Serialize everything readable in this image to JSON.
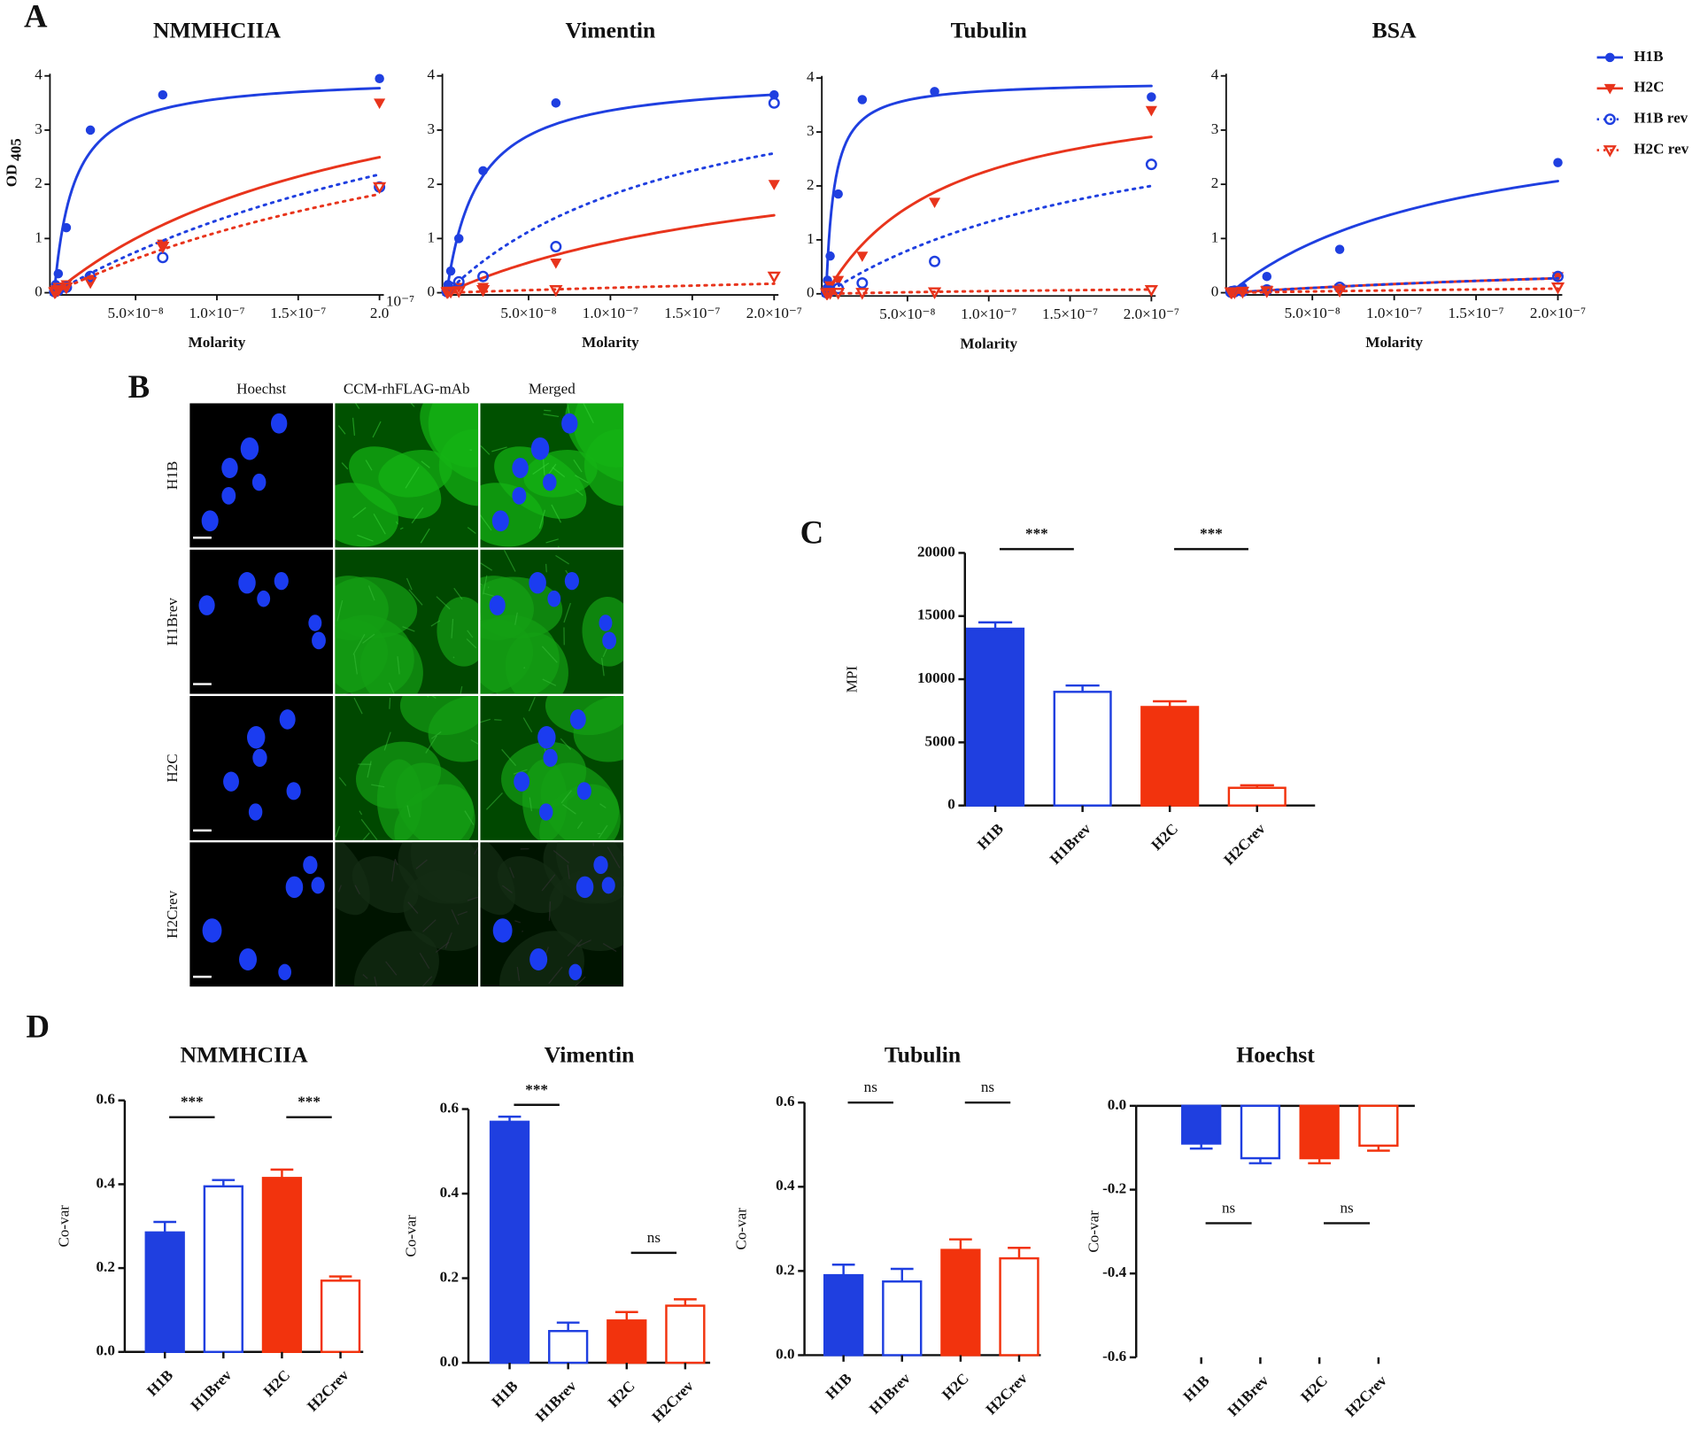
{
  "panel_labels": [
    "A",
    "B",
    "C",
    "D"
  ],
  "microscopy": {
    "columns": [
      "Hoechst",
      "CCM-rhFLAG-mAb",
      "Merged"
    ],
    "rows": [
      "H1B",
      "H1Brev",
      "H2C",
      "H2Crev"
    ]
  },
  "chart_data": [
    {
      "type": "line",
      "title": "NMMHCIIA",
      "xlabel": "Molarity",
      "ylabel": "OD",
      "ylabel_subscript": "405",
      "x": [
        2.74e-10,
        8.23e-10,
        2.47e-09,
        7.41e-09,
        2.22e-08,
        6.67e-08,
        2e-07
      ],
      "xlim": [
        0,
        2e-07
      ],
      "ylim": [
        0,
        4
      ],
      "yticks": [
        0,
        1,
        2,
        3,
        4
      ],
      "xticks": [
        {
          "value": 5e-08,
          "label": "5.0×10⁻⁸"
        },
        {
          "value": 1e-07,
          "label": "1.0×10⁻⁷"
        },
        {
          "value": 1.5e-07,
          "label": "1.5×10⁻⁷"
        },
        {
          "value": 2e-07,
          "label": "2.0"
        }
      ],
      "x_exponent_label": "10⁻⁷",
      "series": [
        {
          "name": "H1B",
          "color": "#1f3fe0",
          "marker": "circle",
          "filled": true,
          "dashed": false,
          "values": [
            0.05,
            0.15,
            0.35,
            1.2,
            3.0,
            3.65,
            3.95
          ],
          "fit": {
            "bmax": 4.0,
            "kd": 1.2e-08
          }
        },
        {
          "name": "H2C",
          "color": "#e8341c",
          "marker": "triangle",
          "filled": true,
          "dashed": false,
          "values": [
            0.02,
            0.05,
            0.1,
            0.15,
            0.25,
            0.9,
            3.5
          ],
          "fit": {
            "bmax": 5.0,
            "kd": 2e-07
          }
        },
        {
          "name": "H1B rev",
          "color": "#1f3fe0",
          "marker": "circle",
          "filled": false,
          "dashed": true,
          "values": [
            0.02,
            0.03,
            0.05,
            0.1,
            0.3,
            0.65,
            1.95
          ],
          "fit": {
            "bmax": 6.0,
            "kd": 3.5e-07
          }
        },
        {
          "name": "H2C rev",
          "color": "#e8341c",
          "marker": "triangle",
          "filled": false,
          "dashed": true,
          "values": [
            0.01,
            0.02,
            0.05,
            0.1,
            0.2,
            0.85,
            1.95
          ],
          "fit": {
            "bmax": 5.0,
            "kd": 3.5e-07
          }
        }
      ]
    },
    {
      "type": "line",
      "title": "Vimentin",
      "xlabel": "Molarity",
      "x": [
        2.74e-10,
        8.23e-10,
        2.47e-09,
        7.41e-09,
        2.22e-08,
        6.67e-08,
        2e-07
      ],
      "xlim": [
        0,
        2e-07
      ],
      "ylim": [
        0,
        4
      ],
      "yticks": [
        0,
        1,
        2,
        3,
        4
      ],
      "xticks": [
        {
          "value": 5e-08,
          "label": "5.0×10⁻⁸"
        },
        {
          "value": 1e-07,
          "label": "1.0×10⁻⁷"
        },
        {
          "value": 1.5e-07,
          "label": "1.5×10⁻⁷"
        },
        {
          "value": 2e-07,
          "label": "2.0×10⁻⁷"
        }
      ],
      "series": [
        {
          "color": "#1f3fe0",
          "marker": "circle",
          "filled": true,
          "dashed": false,
          "values": [
            0.05,
            0.15,
            0.4,
            1.0,
            2.25,
            3.5,
            3.65
          ],
          "fit": {
            "bmax": 4.0,
            "kd": 1.9e-08
          }
        },
        {
          "color": "#e8341c",
          "marker": "triangle",
          "filled": true,
          "dashed": false,
          "values": [
            0.01,
            0.02,
            0.05,
            0.1,
            0.1,
            0.55,
            2.0
          ],
          "fit": {
            "bmax": 3.0,
            "kd": 2.2e-07
          }
        },
        {
          "color": "#1f3fe0",
          "marker": "circle",
          "filled": false,
          "dashed": true,
          "values": [
            0.02,
            0.05,
            0.1,
            0.2,
            0.3,
            0.85,
            3.5
          ],
          "fit": {
            "bmax": 4.5,
            "kd": 1.5e-07
          }
        },
        {
          "color": "#e8341c",
          "marker": "triangle",
          "filled": false,
          "dashed": true,
          "values": [
            0.01,
            0.02,
            0.02,
            0.03,
            0.05,
            0.05,
            0.3
          ],
          "fit": {
            "bmax": 1.0,
            "kd": 1e-06
          }
        }
      ]
    },
    {
      "type": "line",
      "title": "Tubulin",
      "xlabel": "Molarity",
      "x": [
        2.74e-10,
        8.23e-10,
        2.47e-09,
        7.41e-09,
        2.22e-08,
        6.67e-08,
        2e-07
      ],
      "xlim": [
        0,
        2e-07
      ],
      "ylim": [
        0,
        4
      ],
      "yticks": [
        0,
        1,
        2,
        3,
        4
      ],
      "xticks": [
        {
          "value": 5e-08,
          "label": "5.0×10⁻⁸"
        },
        {
          "value": 1e-07,
          "label": "1.0×10⁻⁷"
        },
        {
          "value": 1.5e-07,
          "label": "1.5×10⁻⁷"
        },
        {
          "value": 2e-07,
          "label": "2.0×10⁻⁷"
        }
      ],
      "series": [
        {
          "color": "#1f3fe0",
          "marker": "circle",
          "filled": true,
          "dashed": false,
          "values": [
            0.1,
            0.25,
            0.7,
            1.85,
            3.6,
            3.75,
            3.65
          ],
          "fit": {
            "bmax": 3.95,
            "kd": 5e-09
          }
        },
        {
          "color": "#e8341c",
          "marker": "triangle",
          "filled": true,
          "dashed": false,
          "values": [
            0.02,
            0.05,
            0.15,
            0.25,
            0.7,
            1.7,
            3.4
          ],
          "fit": {
            "bmax": 4.0,
            "kd": 7.5e-08
          }
        },
        {
          "color": "#1f3fe0",
          "marker": "circle",
          "filled": false,
          "dashed": true,
          "values": [
            0.02,
            0.05,
            0.05,
            0.1,
            0.2,
            0.6,
            2.4
          ],
          "fit": {
            "bmax": 4.0,
            "kd": 2e-07
          }
        },
        {
          "color": "#e8341c",
          "marker": "triangle",
          "filled": false,
          "dashed": true,
          "values": [
            0.01,
            0.01,
            0.02,
            0.02,
            0.02,
            0.03,
            0.07
          ],
          "fit": {
            "bmax": 0.2,
            "kd": 3e-07
          }
        }
      ]
    },
    {
      "type": "line",
      "title": "BSA",
      "xlabel": "Molarity",
      "x": [
        2.74e-10,
        8.23e-10,
        2.47e-09,
        7.41e-09,
        2.22e-08,
        6.67e-08,
        2e-07
      ],
      "xlim": [
        0,
        2e-07
      ],
      "ylim": [
        0,
        4
      ],
      "yticks": [
        0,
        1,
        2,
        3,
        4
      ],
      "xticks": [
        {
          "value": 5e-08,
          "label": "5.0×10⁻⁸"
        },
        {
          "value": 1e-07,
          "label": "1.0×10⁻⁷"
        },
        {
          "value": 1.5e-07,
          "label": "1.5×10⁻⁷"
        },
        {
          "value": 2e-07,
          "label": "2.0×10⁻⁷"
        }
      ],
      "series": [
        {
          "color": "#1f3fe0",
          "marker": "circle",
          "filled": true,
          "dashed": false,
          "values": [
            0.02,
            0.03,
            0.05,
            0.1,
            0.3,
            0.8,
            2.4
          ],
          "fit": {
            "bmax": 3.5,
            "kd": 1.4e-07
          }
        },
        {
          "color": "#e8341c",
          "marker": "triangle",
          "filled": true,
          "dashed": false,
          "values": [
            0.01,
            0.01,
            0.02,
            0.03,
            0.05,
            0.08,
            0.3
          ],
          "fit": {
            "bmax": 0.8,
            "kd": 4e-07
          }
        },
        {
          "color": "#1f3fe0",
          "marker": "circle",
          "filled": false,
          "dashed": true,
          "values": [
            0.01,
            0.02,
            0.02,
            0.03,
            0.05,
            0.1,
            0.3
          ],
          "fit": {
            "bmax": 0.8,
            "kd": 4e-07
          }
        },
        {
          "color": "#e8341c",
          "marker": "triangle",
          "filled": false,
          "dashed": true,
          "values": [
            0.01,
            0.01,
            0.01,
            0.02,
            0.03,
            0.04,
            0.1
          ],
          "fit": {
            "bmax": 0.3,
            "kd": 6e-07
          }
        }
      ]
    },
    {
      "type": "bar",
      "ylabel": "MPI",
      "categories": [
        "H1B",
        "H1Brev",
        "H2C",
        "H2Crev"
      ],
      "values": [
        14000,
        9000,
        7800,
        1400
      ],
      "errors": [
        500,
        500,
        450,
        200
      ],
      "colors": [
        "#1f3fe0",
        "#1f3fe0",
        "#f2330d",
        "#f2330d"
      ],
      "filled": [
        true,
        false,
        true,
        false
      ],
      "ylim": [
        0,
        20000
      ],
      "yticks": [
        0,
        5000,
        10000,
        15000,
        20000
      ],
      "significance": [
        {
          "label": "***",
          "pair": [
            0,
            1
          ]
        },
        {
          "label": "***",
          "pair": [
            2,
            3
          ]
        }
      ]
    },
    {
      "type": "bar",
      "title": "NMMHCIIA",
      "ylabel": "Co-var",
      "categories": [
        "H1B",
        "H1Brev",
        "H2C",
        "H2Crev"
      ],
      "values": [
        0.285,
        0.395,
        0.415,
        0.17
      ],
      "errors": [
        0.025,
        0.015,
        0.02,
        0.01
      ],
      "colors": [
        "#1f3fe0",
        "#1f3fe0",
        "#f2330d",
        "#f2330d"
      ],
      "filled": [
        true,
        false,
        true,
        false
      ],
      "ylim": [
        0,
        0.6
      ],
      "yticks": [
        {
          "value": 0,
          "label": "0.0"
        },
        0.2,
        0.4,
        0.6
      ],
      "significance": [
        {
          "label": "***",
          "pair": [
            0,
            1
          ]
        },
        {
          "label": "***",
          "pair": [
            2,
            3
          ]
        }
      ]
    },
    {
      "type": "bar",
      "title": "Vimentin",
      "ylabel": "Co-var",
      "categories": [
        "H1B",
        "H1Brev",
        "H2C",
        "H2Crev"
      ],
      "values": [
        0.57,
        0.075,
        0.1,
        0.135
      ],
      "errors": [
        0.012,
        0.02,
        0.02,
        0.015
      ],
      "colors": [
        "#1f3fe0",
        "#1f3fe0",
        "#f2330d",
        "#f2330d"
      ],
      "filled": [
        true,
        false,
        true,
        false
      ],
      "ylim": [
        0,
        0.6
      ],
      "yticks": [
        {
          "value": 0,
          "label": "0.0"
        },
        0.2,
        0.4,
        0.6
      ],
      "significance": [
        {
          "label": "***",
          "pair": [
            0,
            1
          ]
        },
        {
          "label": "ns",
          "pair": [
            2,
            3
          ]
        }
      ]
    },
    {
      "type": "bar",
      "title": "Tubulin",
      "ylabel": "Co-var",
      "categories": [
        "H1B",
        "H1Brev",
        "H2C",
        "H2Crev"
      ],
      "values": [
        0.19,
        0.175,
        0.25,
        0.23
      ],
      "errors": [
        0.025,
        0.03,
        0.025,
        0.025
      ],
      "colors": [
        "#1f3fe0",
        "#1f3fe0",
        "#f2330d",
        "#f2330d"
      ],
      "filled": [
        true,
        false,
        true,
        false
      ],
      "ylim": [
        0,
        0.6
      ],
      "yticks": [
        {
          "value": 0,
          "label": "0.0"
        },
        0.2,
        0.4,
        0.6
      ],
      "significance": [
        {
          "label": "ns",
          "pair": [
            0,
            1
          ]
        },
        {
          "label": "ns",
          "pair": [
            2,
            3
          ]
        }
      ]
    },
    {
      "type": "bar",
      "title": "Hoechst",
      "ylabel": "Co-var",
      "categories": [
        "H1B",
        "H1Brev",
        "H2C",
        "H2Crev"
      ],
      "values": [
        -0.09,
        -0.125,
        -0.125,
        -0.095
      ],
      "errors": [
        0.012,
        0.012,
        0.012,
        0.012
      ],
      "colors": [
        "#1f3fe0",
        "#1f3fe0",
        "#f2330d",
        "#f2330d"
      ],
      "filled": [
        true,
        false,
        true,
        false
      ],
      "ylim": [
        -0.6,
        0
      ],
      "yticks": [
        {
          "value": 0,
          "label": "0.0"
        },
        -0.2,
        -0.4,
        -0.6
      ],
      "significance": [
        {
          "label": "ns",
          "pair": [
            0,
            1
          ]
        },
        {
          "label": "ns",
          "pair": [
            2,
            3
          ]
        }
      ]
    }
  ]
}
